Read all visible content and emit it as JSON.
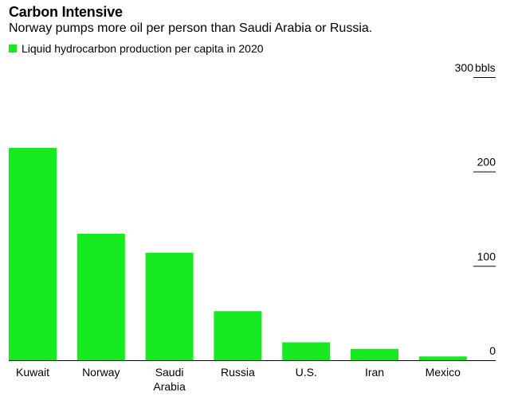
{
  "chart_data": {
    "type": "bar",
    "title": "Carbon Intensive",
    "subtitle": "Norway pumps more oil per person than Saudi Arabia or Russia.",
    "legend": [
      "Liquid hydrocarbon production per capita in 2020"
    ],
    "unit": "bbls",
    "categories": [
      "Kuwait",
      "Norway",
      "Saudi Arabia",
      "Russia",
      "U.S.",
      "Iran",
      "Mexico"
    ],
    "category_lines": [
      [
        "Kuwait"
      ],
      [
        "Norway"
      ],
      [
        "Saudi",
        "Arabia"
      ],
      [
        "Russia"
      ],
      [
        "U.S."
      ],
      [
        "Iran"
      ],
      [
        "Mexico"
      ]
    ],
    "values": [
      225,
      134,
      114,
      52,
      19,
      12,
      4
    ],
    "ylim": [
      0,
      300
    ],
    "yticks": [
      0,
      100,
      200,
      300
    ],
    "ytick_labels": [
      "0",
      "100",
      "200",
      "300"
    ],
    "bar_color": "#18ea22",
    "grid": false
  }
}
